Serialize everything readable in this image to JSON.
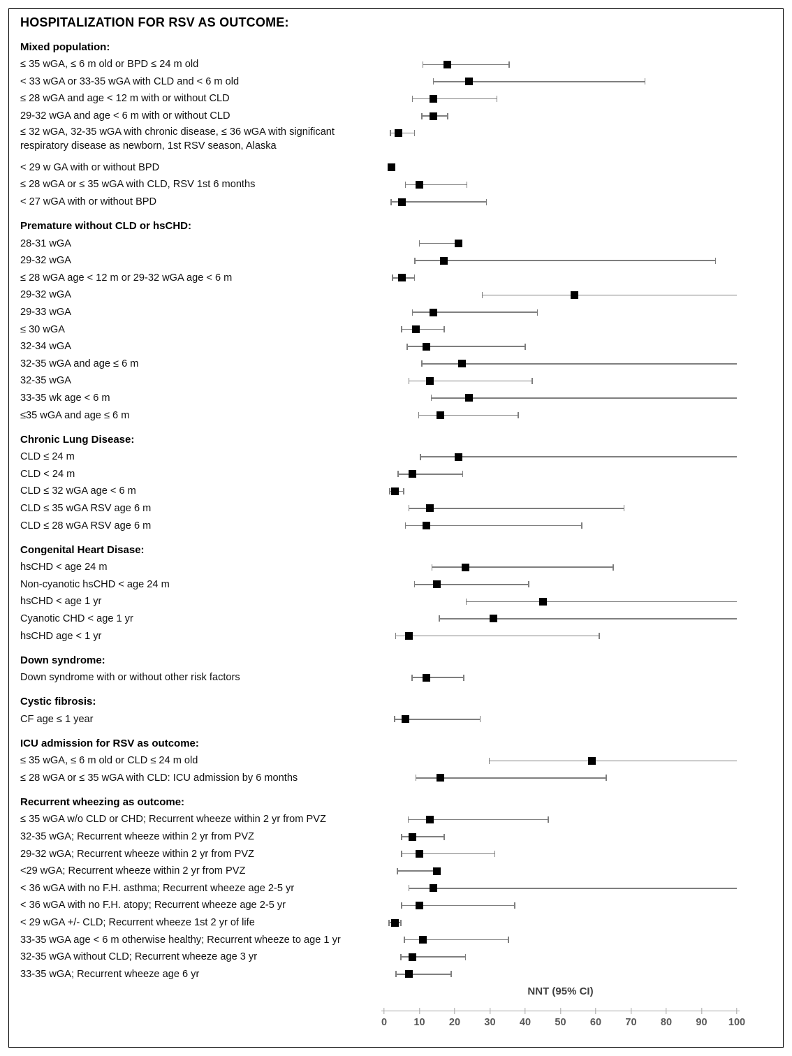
{
  "title": "HOSPITALIZATION FOR RSV AS OUTCOME:",
  "colors": {
    "marker": "#000000",
    "ci_line": "#7f7f7f",
    "axis_line": "#a6a6a6",
    "axis_text": "#595959",
    "axis_title_text": "#404040",
    "text": "#000000",
    "border": "#000000",
    "background": "#ffffff"
  },
  "chart_data": {
    "type": "scatter",
    "subtype": "forest-plot",
    "title": "HOSPITALIZATION FOR RSV AS OUTCOME:",
    "xlabel": "NNT (95% CI)",
    "xlim": [
      0,
      100
    ],
    "axis_ticks": [
      0,
      10,
      20,
      30,
      40,
      50,
      60,
      70,
      80,
      90,
      100
    ],
    "grid": false,
    "legend": "none",
    "note": "Point estimates (black squares) with 95% CI whiskers; ci_high_truncated=true means the interval runs past the 100 axis limit and is drawn without an end cap.",
    "sections": [
      {
        "header": "Mixed population:",
        "rows": [
          {
            "label": "≤ 35 wGA, ≤ 6 m old or BPD ≤ 24 m old",
            "nnt": 18,
            "ci_low": 11,
            "ci_high": 35.5,
            "ci_high_truncated": false,
            "two_line": false
          },
          {
            "label": "< 33 wGA or 33-35 wGA with CLD  and < 6 m old",
            "nnt": 24,
            "ci_low": 14,
            "ci_high": 74,
            "ci_high_truncated": false,
            "two_line": false
          },
          {
            "label": "≤ 28 wGA and age < 12 m with or without CLD",
            "nnt": 14,
            "ci_low": 8,
            "ci_high": 32,
            "ci_high_truncated": false,
            "two_line": false
          },
          {
            "label": "29-32 wGA and age < 6 m with or without CLD",
            "nnt": 14,
            "ci_low": 10.7,
            "ci_high": 18,
            "ci_high_truncated": false,
            "two_line": false
          },
          {
            "label": "≤ 32 wGA, 32-35 wGA with chronic disease, ≤ 36 wGA with significant respiratory disease as newborn, 1st RSV season, Alaska",
            "nnt": 4,
            "ci_low": 1.8,
            "ci_high": 8.6,
            "ci_high_truncated": false,
            "two_line": true
          },
          {
            "label": "< 29 w GA with or without BPD",
            "nnt": 2,
            "ci_low": 1.2,
            "ci_high": 2.9,
            "ci_high_truncated": false,
            "two_line": false
          },
          {
            "label": "≤ 28 wGA or ≤ 35 wGA with CLD, RSV 1st 6 months",
            "nnt": 10,
            "ci_low": 6,
            "ci_high": 23.5,
            "ci_high_truncated": false,
            "two_line": false
          },
          {
            "label": "< 27 wGA with or without BPD",
            "nnt": 5,
            "ci_low": 2,
            "ci_high": 29,
            "ci_high_truncated": false,
            "two_line": false
          }
        ]
      },
      {
        "header": "Premature without CLD or hsCHD:",
        "rows": [
          {
            "label": "28-31 wGA",
            "nnt": 21,
            "ci_low": 10,
            "ci_high": 21,
            "ci_high_truncated": false,
            "two_line": false
          },
          {
            "label": "29-32 wGA",
            "nnt": 17,
            "ci_low": 8.7,
            "ci_high": 94,
            "ci_high_truncated": false,
            "two_line": false
          },
          {
            "label": "≤ 28 wGA age < 12 m or 29-32 wGA age < 6 m",
            "nnt": 5,
            "ci_low": 2.4,
            "ci_high": 8.6,
            "ci_high_truncated": false,
            "two_line": false
          },
          {
            "label": "29-32 wGA",
            "nnt": 54,
            "ci_low": 27.8,
            "ci_high": 100,
            "ci_high_truncated": true,
            "two_line": false
          },
          {
            "label": "29-33 wGA",
            "nnt": 14,
            "ci_low": 8,
            "ci_high": 43.5,
            "ci_high_truncated": false,
            "two_line": false
          },
          {
            "label": "≤ 30 wGA",
            "nnt": 9,
            "ci_low": 5,
            "ci_high": 17,
            "ci_high_truncated": false,
            "two_line": false
          },
          {
            "label": "32-34 wGA",
            "nnt": 12,
            "ci_low": 6.5,
            "ci_high": 40,
            "ci_high_truncated": false,
            "two_line": false
          },
          {
            "label": "32-35 wGA and age ≤ 6 m",
            "nnt": 22,
            "ci_low": 10.7,
            "ci_high": 100,
            "ci_high_truncated": true,
            "two_line": false
          },
          {
            "label": "32-35 wGA",
            "nnt": 13,
            "ci_low": 7,
            "ci_high": 42,
            "ci_high_truncated": false,
            "two_line": false
          },
          {
            "label": "33-35 wk age < 6 m",
            "nnt": 24,
            "ci_low": 13.4,
            "ci_high": 100,
            "ci_high_truncated": true,
            "two_line": false
          },
          {
            "label": "≤35 wGA and age ≤ 6 m",
            "nnt": 16,
            "ci_low": 9.8,
            "ci_high": 38,
            "ci_high_truncated": false,
            "two_line": false
          }
        ]
      },
      {
        "header": "Chronic Lung Disease:",
        "rows": [
          {
            "label": "CLD ≤ 24 m",
            "nnt": 21,
            "ci_low": 10.3,
            "ci_high": 100,
            "ci_high_truncated": true,
            "two_line": false
          },
          {
            "label": "CLD < 24 m",
            "nnt": 8,
            "ci_low": 4,
            "ci_high": 22.3,
            "ci_high_truncated": false,
            "two_line": false
          },
          {
            "label": "CLD ≤ 32 wGA age < 6 m",
            "nnt": 3,
            "ci_low": 1.6,
            "ci_high": 5.5,
            "ci_high_truncated": false,
            "two_line": false
          },
          {
            "label": "CLD ≤ 35 wGA  RSV age 6 m",
            "nnt": 13,
            "ci_low": 7,
            "ci_high": 68,
            "ci_high_truncated": false,
            "two_line": false
          },
          {
            "label": "CLD ≤ 28 wGA RSV age 6 m",
            "nnt": 12,
            "ci_low": 6,
            "ci_high": 56,
            "ci_high_truncated": false,
            "two_line": false
          }
        ]
      },
      {
        "header": "Congenital Heart Disase:",
        "rows": [
          {
            "label": "hsCHD < age 24 m",
            "nnt": 23,
            "ci_low": 13.6,
            "ci_high": 65,
            "ci_high_truncated": false,
            "two_line": false
          },
          {
            "label": "Non-cyanotic hsCHD < age 24 m",
            "nnt": 15,
            "ci_low": 8.6,
            "ci_high": 41,
            "ci_high_truncated": false,
            "two_line": false
          },
          {
            "label": "hsCHD < age 1 yr",
            "nnt": 45,
            "ci_low": 23.3,
            "ci_high": 100,
            "ci_high_truncated": true,
            "two_line": false
          },
          {
            "label": "Cyanotic CHD < age 1 yr",
            "nnt": 31,
            "ci_low": 15.7,
            "ci_high": 100,
            "ci_high_truncated": true,
            "two_line": false
          },
          {
            "label": "hsCHD age < 1 yr",
            "nnt": 7,
            "ci_low": 3.3,
            "ci_high": 61,
            "ci_high_truncated": false,
            "two_line": false
          }
        ]
      },
      {
        "header": "Down syndrome:",
        "rows": [
          {
            "label": "Down syndrome with or without other risk factors",
            "nnt": 12,
            "ci_low": 7.9,
            "ci_high": 22.6,
            "ci_high_truncated": false,
            "two_line": false
          }
        ]
      },
      {
        "header": "Cystic fibrosis:",
        "rows": [
          {
            "label": "CF age ≤ 1 year",
            "nnt": 6,
            "ci_low": 3,
            "ci_high": 27.2,
            "ci_high_truncated": false,
            "two_line": false
          }
        ]
      },
      {
        "header": "ICU admission for RSV as outcome:",
        "rows": [
          {
            "label": "≤ 35 wGA, ≤ 6 m old or CLD ≤ 24 m old",
            "nnt": 59,
            "ci_low": 29.8,
            "ci_high": 100,
            "ci_high_truncated": true,
            "two_line": false
          },
          {
            "label": "≤ 28 wGA or ≤ 35 wGA with CLD: ICU admission by 6 months",
            "nnt": 16,
            "ci_low": 9,
            "ci_high": 63,
            "ci_high_truncated": false,
            "two_line": false
          }
        ]
      },
      {
        "header": "Recurrent wheezing as outcome:",
        "rows": [
          {
            "label": "≤ 35 wGA w/o CLD or CHD;  Recurrent wheeze within 2 yr from PVZ",
            "nnt": 13,
            "ci_low": 6.8,
            "ci_high": 46.5,
            "ci_high_truncated": false,
            "two_line": false
          },
          {
            "label": "32-35 wGA; Recurrent wheeze within 2 yr from PVZ",
            "nnt": 8,
            "ci_low": 5,
            "ci_high": 17,
            "ci_high_truncated": false,
            "two_line": false
          },
          {
            "label": "29-32 wGA; Recurrent wheeze within 2 yr from PVZ",
            "nnt": 10,
            "ci_low": 5,
            "ci_high": 31.4,
            "ci_high_truncated": false,
            "two_line": false
          },
          {
            "label": "<29 wGA; Recurrent wheeze  within 2 yr from PVZ",
            "nnt": 15,
            "ci_low": 3.8,
            "ci_high": 15.5,
            "ci_high_truncated": false,
            "two_line": false
          },
          {
            "label": "< 36 wGA with no F.H. asthma; Recurrent wheeze age 2-5 yr",
            "nnt": 14,
            "ci_low": 7,
            "ci_high": 100,
            "ci_high_truncated": true,
            "two_line": false
          },
          {
            "label": "< 36 wGA with no F.H. atopy;  Recurrent wheeze age 2-5 yr",
            "nnt": 10,
            "ci_low": 5,
            "ci_high": 37,
            "ci_high_truncated": false,
            "two_line": false
          },
          {
            "label": "< 29 wGA +/- CLD;  Recurrent wheeze  1st 2 yr of life",
            "nnt": 3,
            "ci_low": 1.4,
            "ci_high": 4.7,
            "ci_high_truncated": false,
            "two_line": false
          },
          {
            "label": "33-35 wGA age < 6 m otherwise healthy; Recurrent wheeze  to age 1 yr",
            "nnt": 11,
            "ci_low": 5.8,
            "ci_high": 35.2,
            "ci_high_truncated": false,
            "two_line": false
          },
          {
            "label": "32-35 wGA without CLD; Recurrent wheeze  age 3 yr",
            "nnt": 8,
            "ci_low": 4.7,
            "ci_high": 23.1,
            "ci_high_truncated": false,
            "two_line": false
          },
          {
            "label": "33-35 wGA; Recurrent wheeze  age 6 yr",
            "nnt": 7,
            "ci_low": 3.4,
            "ci_high": 19,
            "ci_high_truncated": false,
            "two_line": false
          }
        ]
      }
    ]
  }
}
